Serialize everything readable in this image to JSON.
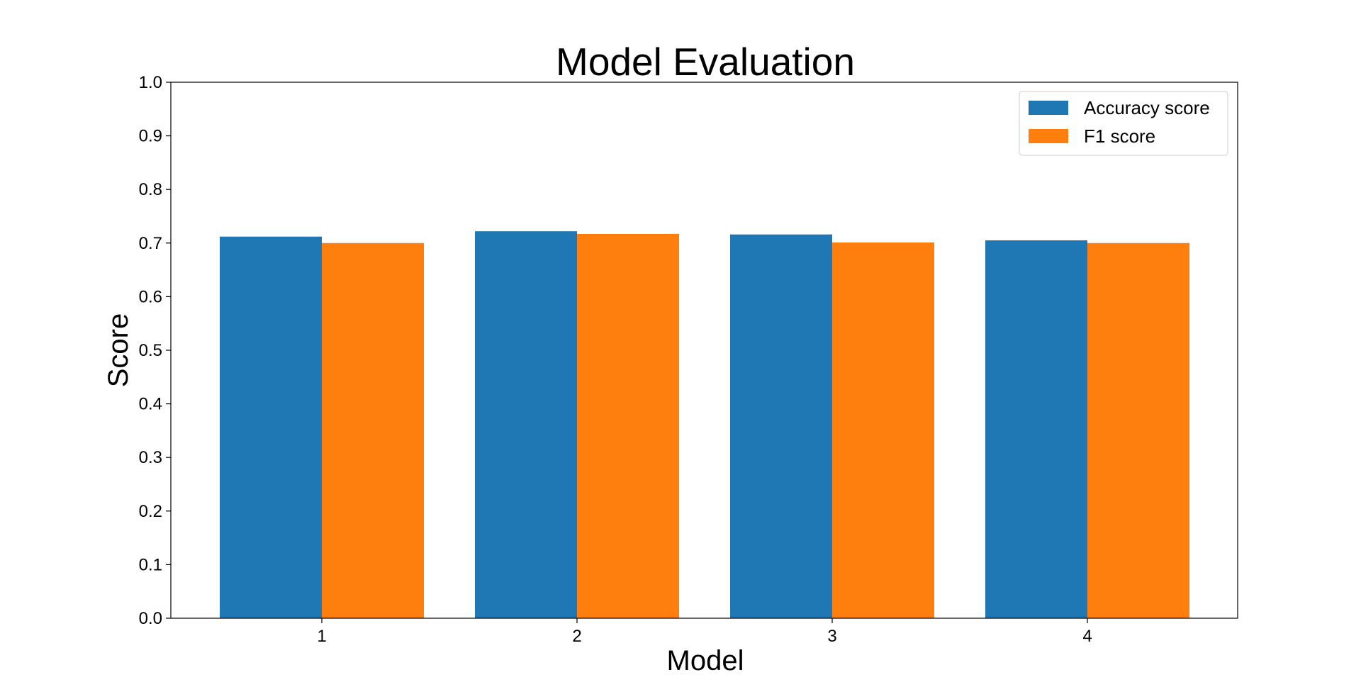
{
  "chart_data": {
    "type": "bar",
    "title": "Model Evaluation",
    "xlabel": "Model",
    "ylabel": "Score",
    "categories": [
      "1",
      "2",
      "3",
      "4"
    ],
    "series": [
      {
        "name": "Accuracy score",
        "color": "#1f77b4",
        "values": [
          0.712,
          0.722,
          0.716,
          0.705
        ]
      },
      {
        "name": "F1 score",
        "color": "#ff7f0e",
        "values": [
          0.7,
          0.717,
          0.701,
          0.7
        ]
      }
    ],
    "ylim": [
      0,
      1.0
    ],
    "yticks": [
      "0.0",
      "0.1",
      "0.2",
      "0.3",
      "0.4",
      "0.5",
      "0.6",
      "0.7",
      "0.8",
      "0.9",
      "1.0"
    ],
    "grid": false,
    "legend_position": "top-right"
  }
}
